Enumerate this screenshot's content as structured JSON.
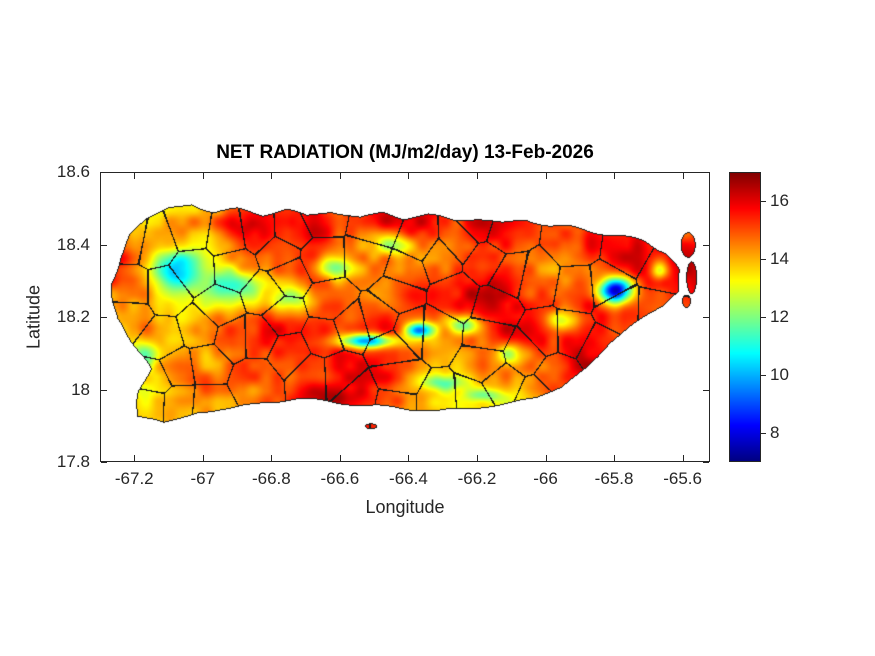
{
  "chart_data": {
    "type": "heatmap",
    "title": "NET RADIATION (MJ/m2/day) 13-Feb-2026",
    "variable": "NET RADIATION",
    "units": "MJ/m2/day",
    "date": "13-Feb-2026",
    "xlabel": "Longitude",
    "ylabel": "Latitude",
    "xlim": [
      -67.3,
      -65.52
    ],
    "ylim": [
      17.8,
      18.6
    ],
    "xticks": [
      -67.2,
      -67,
      -66.8,
      -66.6,
      -66.4,
      -66.2,
      -66,
      -65.8,
      -65.6
    ],
    "xtick_labels": [
      "-67.2",
      "-67",
      "-66.8",
      "-66.6",
      "-66.4",
      "-66.2",
      "-66",
      "-65.8",
      "-65.6"
    ],
    "yticks": [
      17.8,
      18,
      18.2,
      18.4,
      18.6
    ],
    "ytick_labels": [
      "17.8",
      "18",
      "18.2",
      "18.4",
      "18.6"
    ],
    "colormap": "jet",
    "clim": [
      7,
      17
    ],
    "colorbar_ticks": [
      8,
      10,
      12,
      14,
      16
    ],
    "colorbar_tick_labels": [
      "8",
      "10",
      "12",
      "14",
      "16"
    ],
    "region": "Puerto Rico with municipal boundaries",
    "grid": false,
    "outline": [
      [
        -67.21,
        18.43
      ],
      [
        -67.16,
        18.47
      ],
      [
        -67.1,
        18.5
      ],
      [
        -67.03,
        18.515
      ],
      [
        -66.97,
        18.49
      ],
      [
        -66.9,
        18.5
      ],
      [
        -66.83,
        18.485
      ],
      [
        -66.76,
        18.5
      ],
      [
        -66.69,
        18.48
      ],
      [
        -66.62,
        18.495
      ],
      [
        -66.55,
        18.475
      ],
      [
        -66.48,
        18.49
      ],
      [
        -66.41,
        18.475
      ],
      [
        -66.34,
        18.485
      ],
      [
        -66.27,
        18.47
      ],
      [
        -66.2,
        18.475
      ],
      [
        -66.13,
        18.46
      ],
      [
        -66.06,
        18.47
      ],
      [
        -65.99,
        18.455
      ],
      [
        -65.92,
        18.45
      ],
      [
        -65.85,
        18.435
      ],
      [
        -65.78,
        18.425
      ],
      [
        -65.71,
        18.41
      ],
      [
        -65.65,
        18.38
      ],
      [
        -65.615,
        18.33
      ],
      [
        -65.61,
        18.27
      ],
      [
        -65.66,
        18.225
      ],
      [
        -65.74,
        18.18
      ],
      [
        -65.82,
        18.13
      ],
      [
        -65.89,
        18.06
      ],
      [
        -65.95,
        18.01
      ],
      [
        -66.03,
        17.975
      ],
      [
        -66.12,
        17.96
      ],
      [
        -66.22,
        17.95
      ],
      [
        -66.32,
        17.94
      ],
      [
        -66.42,
        17.95
      ],
      [
        -66.52,
        17.955
      ],
      [
        -66.62,
        17.965
      ],
      [
        -66.72,
        17.975
      ],
      [
        -66.82,
        17.965
      ],
      [
        -66.92,
        17.945
      ],
      [
        -67.02,
        17.94
      ],
      [
        -67.12,
        17.905
      ],
      [
        -67.19,
        17.93
      ],
      [
        -67.185,
        18.0
      ],
      [
        -67.16,
        18.06
      ],
      [
        -67.2,
        18.12
      ],
      [
        -67.255,
        18.2
      ],
      [
        -67.27,
        18.29
      ],
      [
        -67.25,
        18.36
      ],
      [
        -67.21,
        18.43
      ]
    ],
    "islets": [
      {
        "lon": -66.51,
        "lat": 17.9,
        "rx": 0.018,
        "ry": 0.008
      },
      {
        "lon": -65.585,
        "lat": 18.4,
        "rx": 0.022,
        "ry": 0.035
      },
      {
        "lon": -65.575,
        "lat": 18.31,
        "rx": 0.016,
        "ry": 0.045
      },
      {
        "lon": -65.59,
        "lat": 18.245,
        "rx": 0.013,
        "ry": 0.018
      }
    ],
    "field": {
      "base": 14.5,
      "noise_amp": 3.0,
      "anomalies": [
        {
          "lon": -65.795,
          "lat": 18.275,
          "amp": -8.0,
          "rx": 0.05,
          "ry": 0.036
        },
        {
          "lon": -66.52,
          "lat": 18.135,
          "amp": -5.5,
          "rx": 0.08,
          "ry": 0.02
        },
        {
          "lon": -66.37,
          "lat": 18.165,
          "amp": -5.0,
          "rx": 0.04,
          "ry": 0.02
        },
        {
          "lon": -66.24,
          "lat": 18.18,
          "amp": -3.0,
          "rx": 0.05,
          "ry": 0.025
        },
        {
          "lon": -67.08,
          "lat": 18.33,
          "amp": -3.2,
          "rx": 0.07,
          "ry": 0.05
        },
        {
          "lon": -66.9,
          "lat": 18.29,
          "amp": -3.0,
          "rx": 0.085,
          "ry": 0.045
        },
        {
          "lon": -66.74,
          "lat": 18.25,
          "amp": -2.8,
          "rx": 0.07,
          "ry": 0.04
        },
        {
          "lon": -66.62,
          "lat": 18.34,
          "amp": -2.6,
          "rx": 0.055,
          "ry": 0.035
        },
        {
          "lon": -66.45,
          "lat": 18.4,
          "amp": -2.4,
          "rx": 0.06,
          "ry": 0.03
        },
        {
          "lon": -66.1,
          "lat": 18.1,
          "amp": -2.6,
          "rx": 0.045,
          "ry": 0.03
        },
        {
          "lon": -65.95,
          "lat": 18.19,
          "amp": -2.4,
          "rx": 0.045,
          "ry": 0.03
        },
        {
          "lon": -66.3,
          "lat": 18.02,
          "amp": -2.2,
          "rx": 0.07,
          "ry": 0.022
        },
        {
          "lon": -66.18,
          "lat": 17.985,
          "amp": -2.0,
          "rx": 0.055,
          "ry": 0.018
        },
        {
          "lon": -65.67,
          "lat": 18.33,
          "amp": -2.5,
          "rx": 0.028,
          "ry": 0.028
        },
        {
          "lon": -67.17,
          "lat": 18.1,
          "amp": -2.2,
          "rx": 0.04,
          "ry": 0.045
        },
        {
          "lon": -66.15,
          "lat": 18.25,
          "amp": 1.5,
          "rx": 0.12,
          "ry": 0.08
        },
        {
          "lon": -66.45,
          "lat": 18.47,
          "amp": 1.0,
          "rx": 0.15,
          "ry": 0.035
        },
        {
          "lon": -66.95,
          "lat": 18.46,
          "amp": 1.0,
          "rx": 0.1,
          "ry": 0.03
        },
        {
          "lon": -66.6,
          "lat": 17.98,
          "amp": 0.9,
          "rx": 0.1,
          "ry": 0.03
        },
        {
          "lon": -67.0,
          "lat": 18.02,
          "amp": 0.9,
          "rx": 0.08,
          "ry": 0.04
        },
        {
          "lon": -65.85,
          "lat": 18.4,
          "amp": 0.8,
          "rx": 0.07,
          "ry": 0.035
        }
      ]
    }
  }
}
